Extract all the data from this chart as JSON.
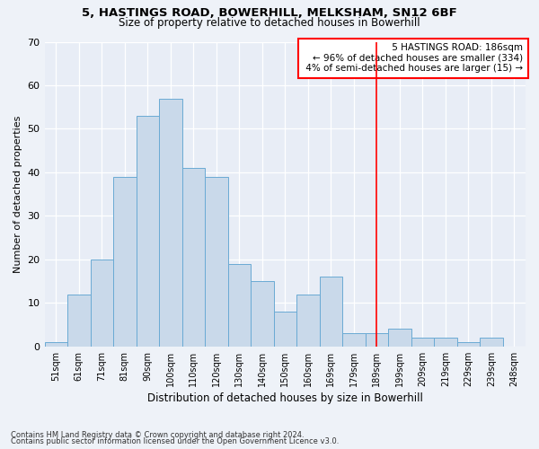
{
  "title1": "5, HASTINGS ROAD, BOWERHILL, MELKSHAM, SN12 6BF",
  "title2": "Size of property relative to detached houses in Bowerhill",
  "xlabel": "Distribution of detached houses by size in Bowerhill",
  "ylabel": "Number of detached properties",
  "categories": [
    "51sqm",
    "61sqm",
    "71sqm",
    "81sqm",
    "90sqm",
    "100sqm",
    "110sqm",
    "120sqm",
    "130sqm",
    "140sqm",
    "150sqm",
    "160sqm",
    "169sqm",
    "179sqm",
    "189sqm",
    "199sqm",
    "209sqm",
    "219sqm",
    "229sqm",
    "239sqm",
    "248sqm"
  ],
  "values": [
    1,
    12,
    20,
    39,
    53,
    57,
    41,
    39,
    19,
    15,
    8,
    12,
    16,
    3,
    3,
    4,
    2,
    2,
    1,
    2,
    0
  ],
  "bar_color": "#c9d9ea",
  "bar_edge_color": "#6aaad4",
  "vline_position": 14.0,
  "ylim": [
    0,
    70
  ],
  "yticks": [
    0,
    10,
    20,
    30,
    40,
    50,
    60,
    70
  ],
  "annotation_line1": "5 HASTINGS ROAD: 186sqm",
  "annotation_line2": "← 96% of detached houses are smaller (334)",
  "annotation_line3": "4% of semi-detached houses are larger (15) →",
  "footnote1": "Contains HM Land Registry data © Crown copyright and database right 2024.",
  "footnote2": "Contains public sector information licensed under the Open Government Licence v3.0.",
  "bg_color": "#eef2f8",
  "plot_bg_color": "#e8edf6"
}
